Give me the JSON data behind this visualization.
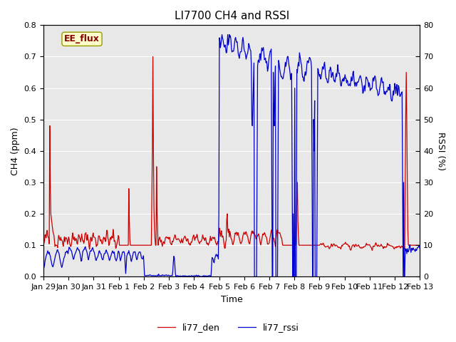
{
  "title": "LI7700 CH4 and RSSI",
  "xlabel": "Time",
  "ylabel_left": "CH4 (ppm)",
  "ylabel_right": "RSSI (%)",
  "ylim_left": [
    0.0,
    0.8
  ],
  "ylim_right": [
    0,
    80
  ],
  "background_color": "#e8e8e8",
  "line_color_red": "#cc0000",
  "line_color_blue": "#0000cc",
  "legend_labels": [
    "li77_den",
    "li77_rssi"
  ],
  "annotation_text": "EE_flux",
  "annotation_bg": "#ffffcc",
  "annotation_border": "#999900",
  "title_fontsize": 11,
  "axis_fontsize": 9,
  "tick_fontsize": 8,
  "linewidth": 0.9
}
